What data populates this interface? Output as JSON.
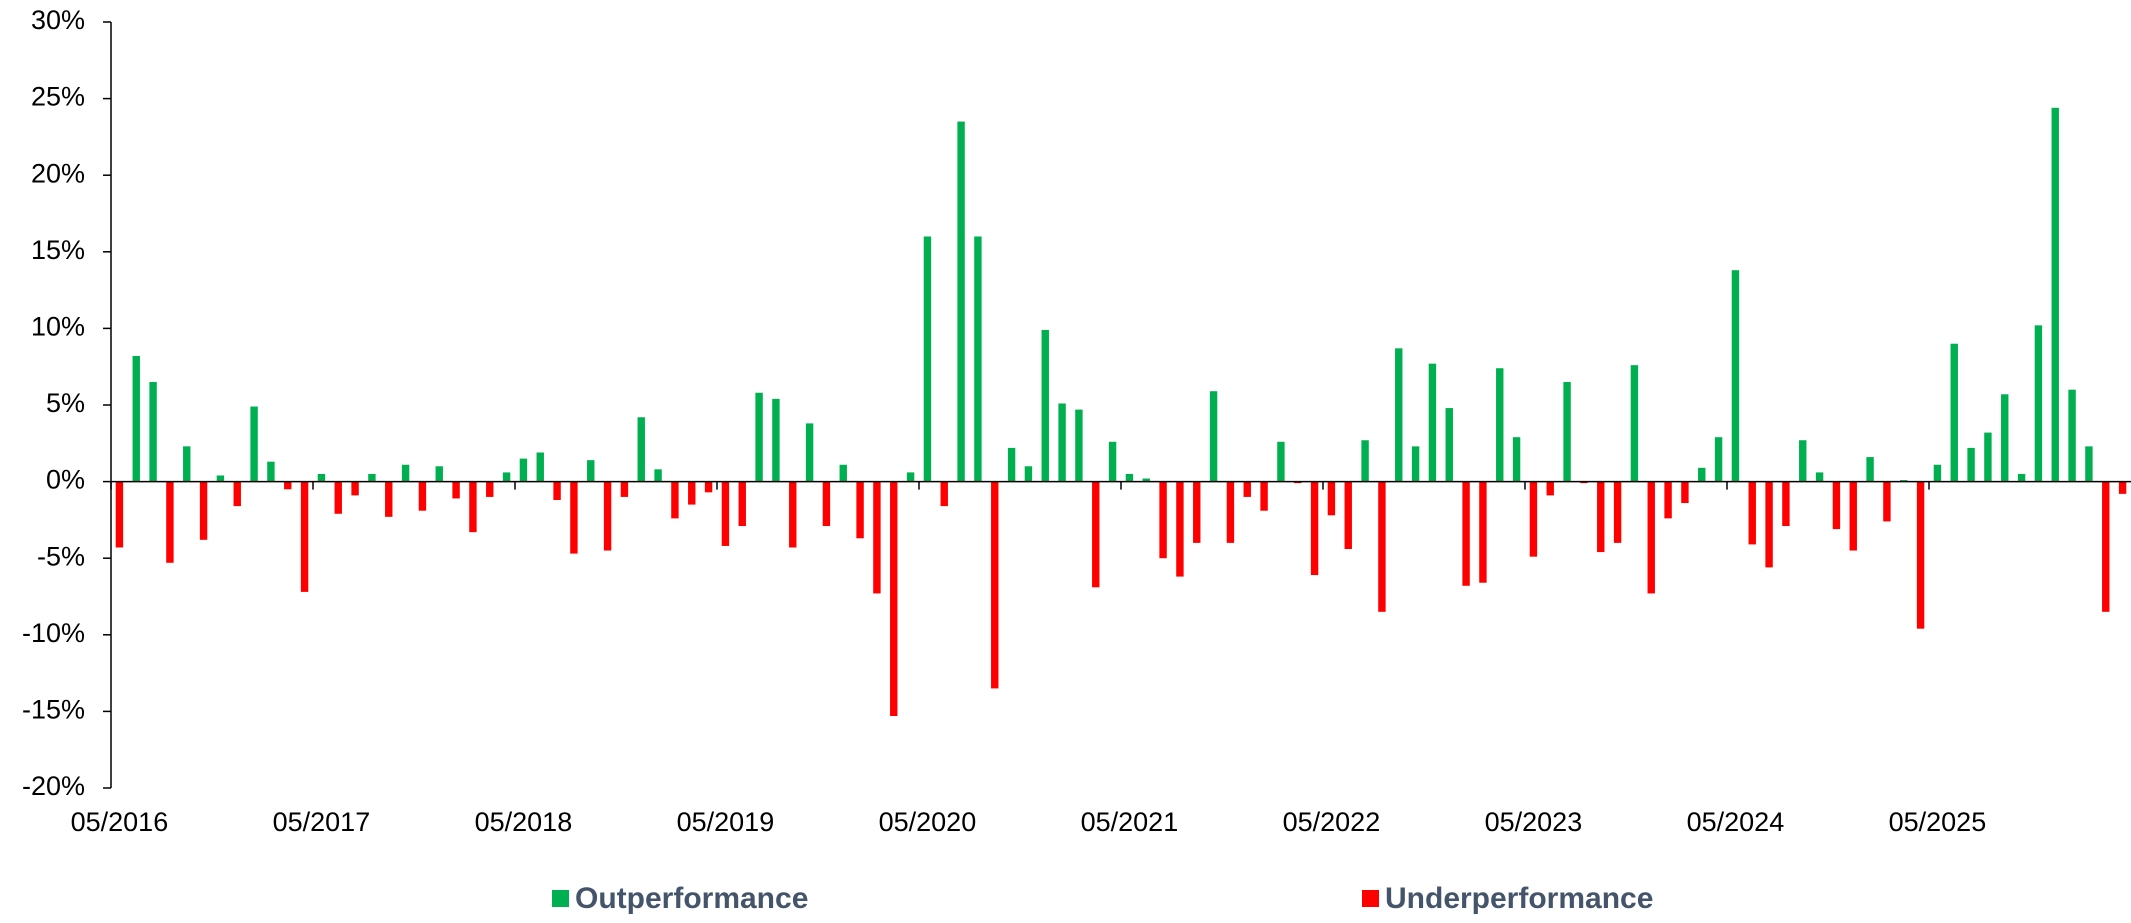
{
  "chart_data": {
    "type": "bar",
    "categories": [
      "05/2016",
      null,
      null,
      null,
      null,
      null,
      null,
      null,
      null,
      null,
      null,
      null,
      "05/2017",
      null,
      null,
      null,
      null,
      null,
      null,
      null,
      null,
      null,
      null,
      null,
      "05/2018",
      null,
      null,
      null,
      null,
      null,
      null,
      null,
      null,
      null,
      null,
      null,
      "05/2019",
      null,
      null,
      null,
      null,
      null,
      null,
      null,
      null,
      null,
      null,
      null,
      "05/2020",
      null,
      null,
      null,
      null,
      null,
      null,
      null,
      null,
      null,
      null,
      null,
      "05/2021",
      null,
      null,
      null,
      null,
      null,
      null,
      null,
      null,
      null,
      null,
      null,
      "05/2022",
      null,
      null,
      null,
      null,
      null,
      null,
      null,
      null,
      null,
      null,
      null,
      "05/2023",
      null,
      null,
      null,
      null,
      null,
      null,
      null,
      null,
      null,
      null,
      null,
      "05/2024",
      null,
      null,
      null,
      null,
      null,
      null,
      null,
      null,
      null,
      null,
      null,
      "05/2025",
      null,
      null,
      null,
      null,
      null,
      null,
      null,
      null,
      null,
      null,
      null
    ],
    "series": [
      {
        "name": "Outperformance",
        "color": "#00b050",
        "values": [
          null,
          8.2,
          6.5,
          null,
          2.3,
          null,
          0.4,
          null,
          4.9,
          1.3,
          null,
          null,
          0.5,
          null,
          null,
          0.5,
          null,
          1.1,
          null,
          1.0,
          null,
          null,
          null,
          0.6,
          1.5,
          1.9,
          null,
          null,
          1.4,
          null,
          null,
          4.2,
          0.8,
          null,
          null,
          null,
          null,
          null,
          5.8,
          5.4,
          null,
          3.8,
          null,
          1.1,
          null,
          null,
          null,
          0.6,
          16.0,
          null,
          23.5,
          16.0,
          null,
          2.2,
          1.0,
          9.9,
          5.1,
          4.7,
          null,
          2.6,
          0.5,
          0.2,
          null,
          null,
          null,
          5.9,
          null,
          null,
          null,
          2.6,
          null,
          null,
          null,
          null,
          2.7,
          null,
          8.7,
          2.3,
          7.7,
          4.8,
          null,
          null,
          7.4,
          2.9,
          null,
          null,
          6.5,
          null,
          null,
          null,
          7.6,
          null,
          null,
          null,
          0.9,
          2.9,
          13.8,
          null,
          null,
          null,
          2.7,
          0.6,
          null,
          null,
          1.6,
          null,
          0.1,
          null,
          1.1,
          9.0,
          2.2,
          3.2,
          5.7,
          0.5,
          10.2,
          24.4,
          6.0,
          2.3,
          null,
          null
        ]
      },
      {
        "name": "Underperformance",
        "color": "#ff0000",
        "values": [
          -4.3,
          null,
          null,
          -5.3,
          null,
          -3.8,
          null,
          -1.6,
          null,
          null,
          -0.5,
          -7.2,
          null,
          -2.1,
          -0.9,
          null,
          -2.3,
          null,
          -1.9,
          null,
          -1.1,
          -3.3,
          -1.0,
          null,
          null,
          null,
          -1.2,
          -4.7,
          null,
          -4.5,
          -1.0,
          null,
          null,
          -2.4,
          -1.5,
          -0.7,
          -4.2,
          -2.9,
          null,
          null,
          -4.3,
          null,
          -2.9,
          null,
          -3.7,
          -7.3,
          -15.3,
          null,
          null,
          -1.6,
          null,
          null,
          -13.5,
          null,
          null,
          null,
          null,
          null,
          -6.9,
          null,
          null,
          null,
          -5.0,
          -6.2,
          -4.0,
          null,
          -4.0,
          -1.0,
          -1.9,
          null,
          -0.1,
          -6.1,
          -2.2,
          -4.4,
          null,
          -8.5,
          null,
          null,
          null,
          null,
          -6.8,
          -6.6,
          null,
          null,
          -4.9,
          -0.9,
          null,
          -0.1,
          -4.6,
          -4.0,
          null,
          -7.3,
          -2.4,
          -1.4,
          null,
          null,
          null,
          -4.1,
          -5.6,
          -2.9,
          null,
          null,
          -3.1,
          -4.5,
          null,
          -2.6,
          null,
          -9.6,
          null,
          null,
          null,
          null,
          null,
          null,
          null,
          null,
          null,
          null,
          -8.5,
          -0.8
        ]
      }
    ],
    "ylim": [
      -20,
      30
    ],
    "yticks": [
      {
        "value": 30,
        "label": "30%"
      },
      {
        "value": 25,
        "label": "25%"
      },
      {
        "value": 20,
        "label": "20%"
      },
      {
        "value": 15,
        "label": "15%"
      },
      {
        "value": 10,
        "label": "10%"
      },
      {
        "value": 5,
        "label": "5%"
      },
      {
        "value": 0,
        "label": "0%"
      },
      {
        "value": -5,
        "label": "-5%"
      },
      {
        "value": -10,
        "label": "-10%"
      },
      {
        "value": -15,
        "label": "-15%"
      },
      {
        "value": -20,
        "label": "-20%"
      }
    ],
    "grid": false,
    "legend": "bottom"
  }
}
